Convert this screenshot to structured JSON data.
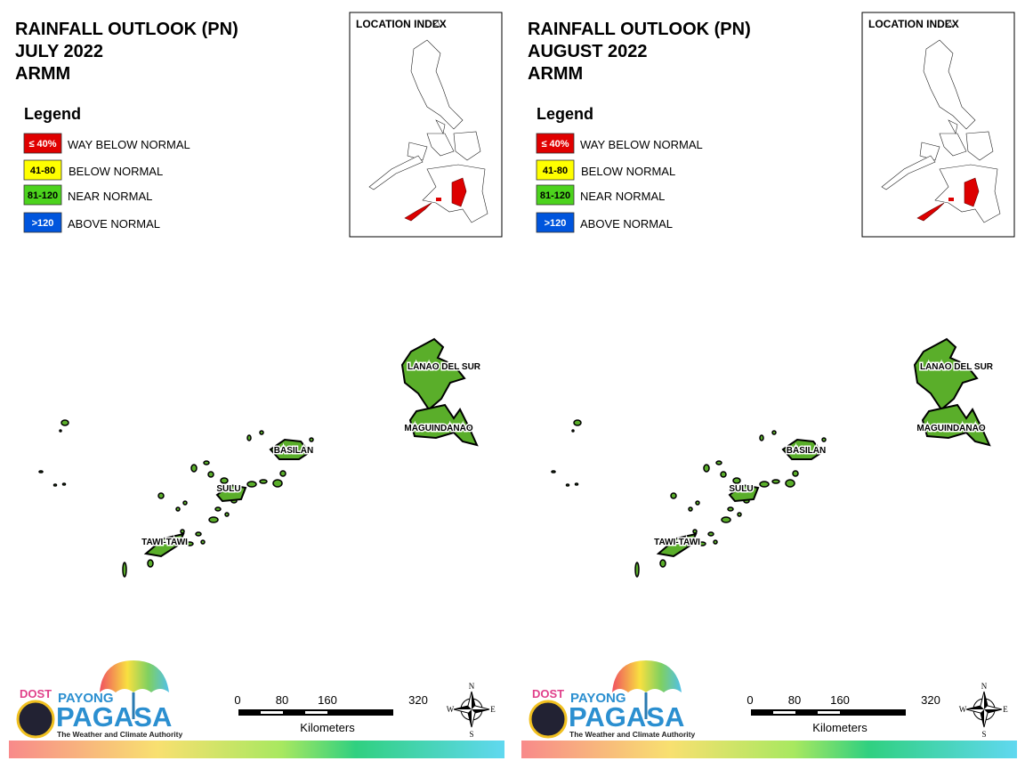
{
  "panels": [
    {
      "title": [
        "RAINFALL OUTLOOK (PN)",
        "JULY 2022",
        "ARMM"
      ],
      "legend_title": "Legend",
      "legend": [
        {
          "range": "≤ 40%",
          "label": "WAY BELOW NORMAL",
          "color": "#e00000"
        },
        {
          "range": "41-80",
          "label": "BELOW NORMAL",
          "color": "#ffff00"
        },
        {
          "range": "81-120",
          "label": "NEAR NORMAL",
          "color": "#4cd31d"
        },
        {
          "range": ">120",
          "label": "ABOVE NORMAL",
          "color": "#0055dd"
        }
      ],
      "location_index": "LOCATION INDEX",
      "regions": [
        {
          "name": "LANAO DEL SUR",
          "color": "#5aae2a"
        },
        {
          "name": "MAGUINDANAO",
          "color": "#5aae2a"
        },
        {
          "name": "BASILAN",
          "color": "#5aae2a"
        },
        {
          "name": "SULU",
          "color": "#5aae2a"
        },
        {
          "name": "TAWI-TAWI",
          "color": "#5aae2a"
        }
      ],
      "scale": [
        "0",
        "80",
        "160",
        "320"
      ],
      "scale_unit": "Kilometers",
      "compass": [
        "N",
        "E",
        "S",
        "W"
      ],
      "logo": {
        "agency": "DOST",
        "program": "PAYONG",
        "name": "PAGASA",
        "tagline": "The Weather and Climate Authority"
      }
    },
    {
      "title": [
        "RAINFALL OUTLOOK (PN)",
        "AUGUST 2022",
        "ARMM"
      ],
      "legend_title": "Legend",
      "legend": [
        {
          "range": "≤ 40%",
          "label": "WAY BELOW NORMAL",
          "color": "#e00000"
        },
        {
          "range": "41-80",
          "label": "BELOW NORMAL",
          "color": "#ffff00"
        },
        {
          "range": "81-120",
          "label": "NEAR NORMAL",
          "color": "#4cd31d"
        },
        {
          "range": ">120",
          "label": "ABOVE NORMAL",
          "color": "#0055dd"
        }
      ],
      "location_index": "LOCATION INDEX",
      "regions": [
        {
          "name": "LANAO DEL SUR",
          "color": "#5aae2a"
        },
        {
          "name": "MAGUINDANAO",
          "color": "#5aae2a"
        },
        {
          "name": "BASILAN",
          "color": "#5aae2a"
        },
        {
          "name": "SULU",
          "color": "#5aae2a"
        },
        {
          "name": "TAWI-TAWI",
          "color": "#5aae2a"
        }
      ],
      "scale": [
        "0",
        "80",
        "160",
        "320"
      ],
      "scale_unit": "Kilometers",
      "compass": [
        "N",
        "E",
        "S",
        "W"
      ],
      "logo": {
        "agency": "DOST",
        "program": "PAYONG",
        "name": "PAGASA",
        "tagline": "The Weather and Climate Authority"
      }
    }
  ]
}
